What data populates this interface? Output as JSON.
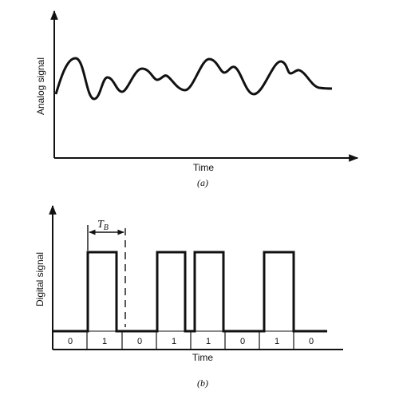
{
  "panel_a": {
    "ylabel": "Analog signal",
    "xlabel": "Time",
    "caption": "(a)"
  },
  "panel_b": {
    "ylabel": "Digital signal",
    "xlabel": "Time",
    "caption": "(b)",
    "period_label": "T",
    "period_subscript": "B",
    "bits": [
      "0",
      "1",
      "0",
      "1",
      "1",
      "0",
      "1",
      "0"
    ]
  }
}
